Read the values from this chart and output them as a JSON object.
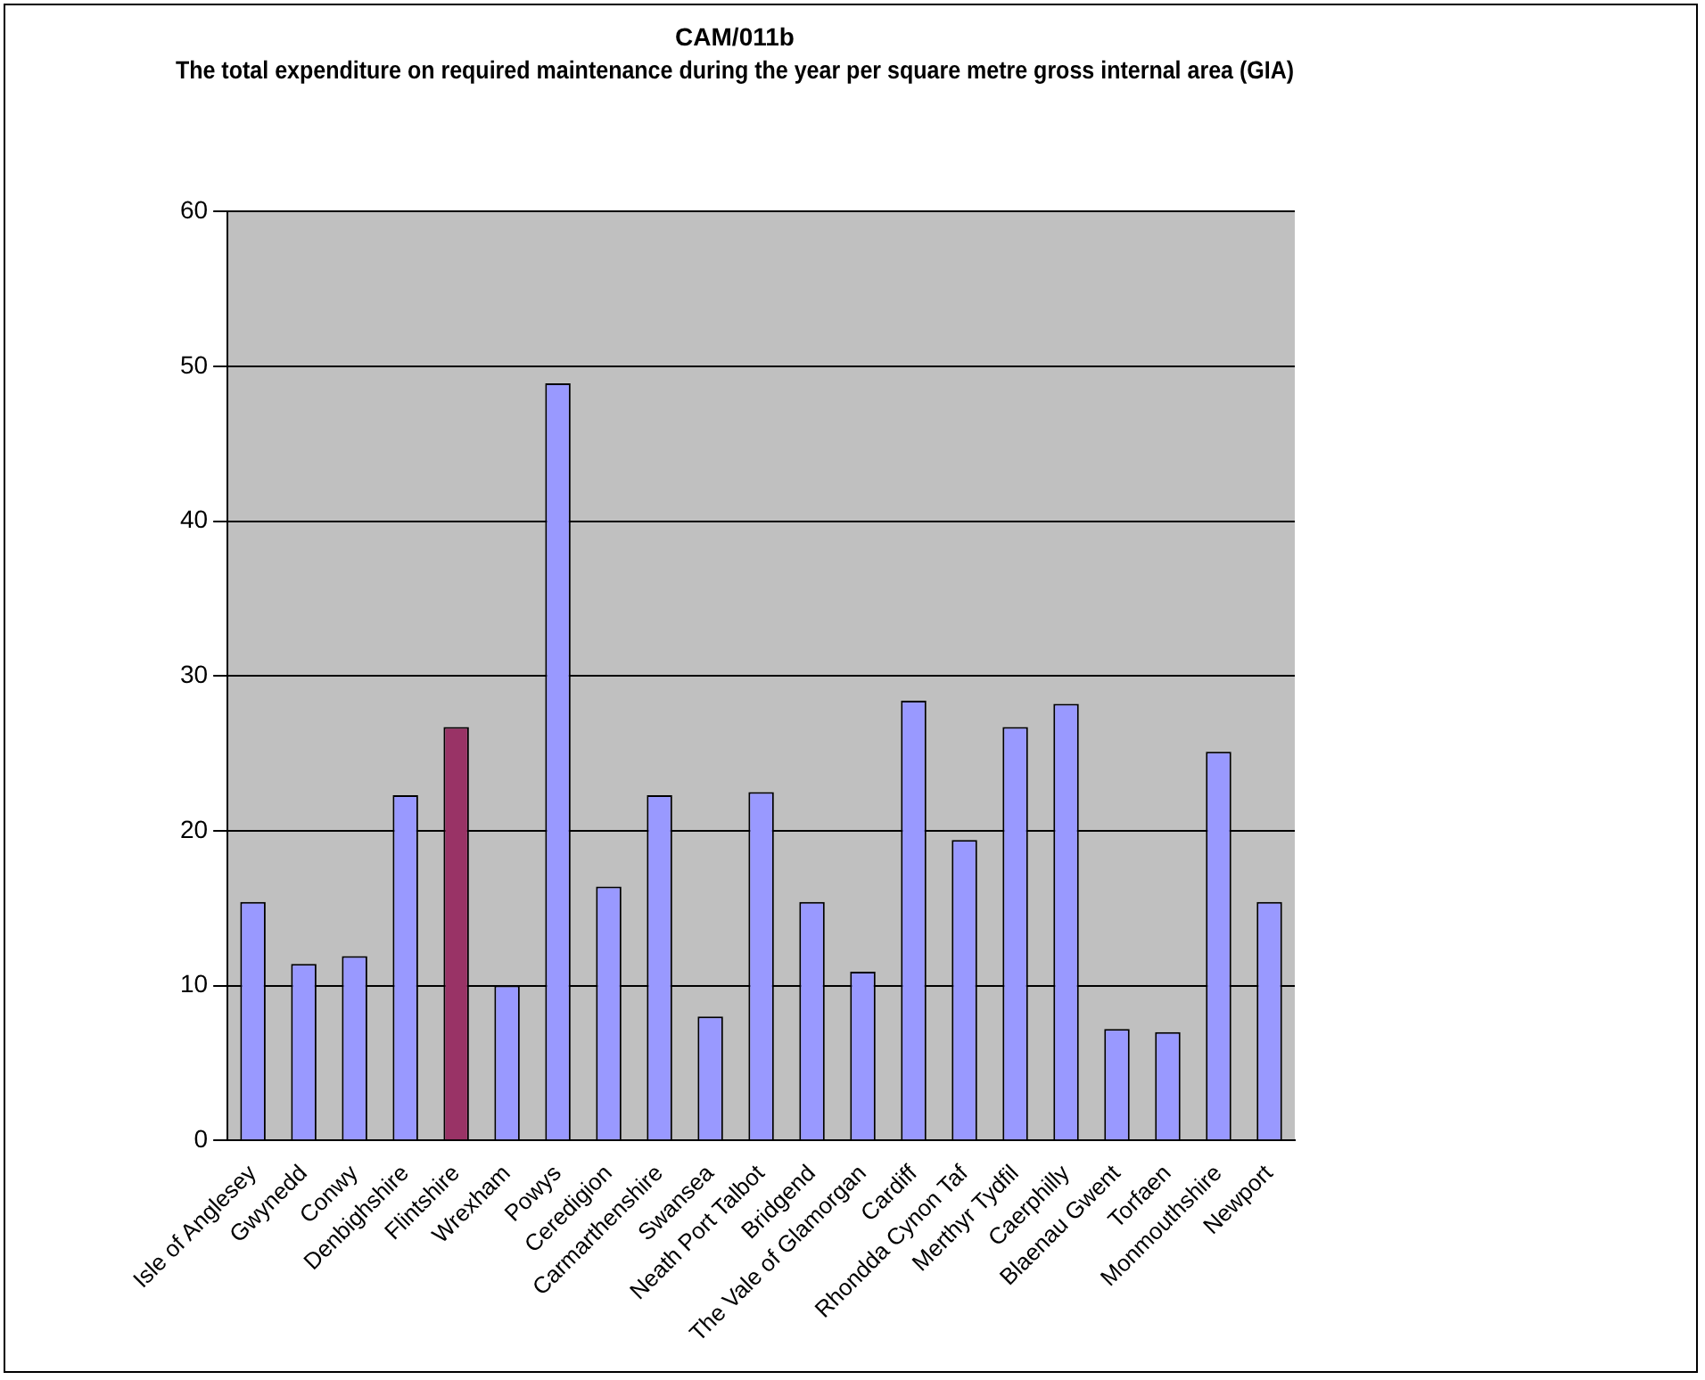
{
  "chart_data": {
    "type": "bar",
    "title": "CAM/011b",
    "subtitle": "The total expenditure on required maintenance during the year per square metre gross internal area (GIA)",
    "categories": [
      "Isle of Anglesey",
      "Gwynedd",
      "Conwy",
      "Denbighshire",
      "Flintshire",
      "Wrexham",
      "Powys",
      "Ceredigion",
      "Carmarthenshire",
      "Swansea",
      "Neath Port Talbot",
      "Bridgend",
      "The Vale of Glamorgan",
      "Cardiff",
      "Rhondda Cynon Taf",
      "Merthyr Tydfil",
      "Caerphilly",
      "Blaenau Gwent",
      "Torfaen",
      "Monmouthshire",
      "Newport"
    ],
    "values": [
      15.4,
      11.4,
      11.9,
      22.3,
      26.7,
      10.0,
      48.9,
      16.4,
      22.3,
      8.0,
      22.5,
      15.4,
      10.9,
      28.4,
      19.4,
      26.7,
      28.2,
      7.2,
      7.0,
      25.1,
      15.4
    ],
    "colors": [
      "#9999ff",
      "#9999ff",
      "#9999ff",
      "#9999ff",
      "#993366",
      "#9999ff",
      "#9999ff",
      "#9999ff",
      "#9999ff",
      "#9999ff",
      "#9999ff",
      "#9999ff",
      "#9999ff",
      "#9999ff",
      "#9999ff",
      "#9999ff",
      "#9999ff",
      "#9999ff",
      "#9999ff",
      "#9999ff",
      "#9999ff"
    ],
    "ylim": [
      0,
      60
    ],
    "yticks": [
      0,
      10,
      20,
      30,
      40,
      50,
      60
    ],
    "grid": "y",
    "legend": false
  }
}
